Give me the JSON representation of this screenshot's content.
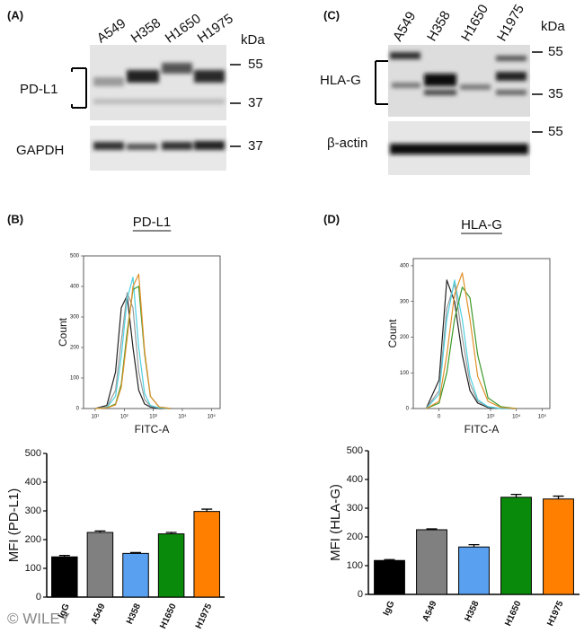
{
  "panels": [
    "(A)",
    "(B)",
    "(C)",
    "(D)"
  ],
  "blots": {
    "A": {
      "lanes": [
        "A549",
        "H358",
        "H1650",
        "H1975"
      ],
      "unit": "kDa",
      "markers": [
        "55",
        "37",
        "37"
      ],
      "targets": [
        "PD-L1",
        "GAPDH"
      ]
    },
    "C": {
      "lanes": [
        "A549",
        "H358",
        "H1650",
        "H1975"
      ],
      "unit": "kDa",
      "markers": [
        "55",
        "35",
        "55"
      ],
      "targets": [
        "HLA-G",
        "β-actin"
      ]
    }
  },
  "watermark": "© WILEY",
  "chart_data": [
    {
      "type": "line",
      "title": "PD-L1",
      "xlabel": "FITC-A",
      "ylabel": "Count",
      "x": [
        1,
        1.4,
        1.7,
        1.9,
        2.1,
        2.3,
        2.5,
        2.7,
        2.9,
        3.2,
        3.6
      ],
      "series": [
        {
          "color": "#222222",
          "values": [
            0,
            10,
            120,
            330,
            370,
            200,
            60,
            15,
            5,
            0,
            0
          ]
        },
        {
          "color": "#9a9a9a",
          "values": [
            0,
            5,
            60,
            220,
            380,
            330,
            120,
            30,
            8,
            2,
            0
          ]
        },
        {
          "color": "#4fd0e0",
          "values": [
            0,
            3,
            40,
            170,
            360,
            430,
            200,
            50,
            10,
            2,
            0
          ]
        },
        {
          "color": "#3a9a2a",
          "values": [
            0,
            2,
            15,
            80,
            250,
            390,
            400,
            180,
            40,
            5,
            0
          ]
        },
        {
          "color": "#e0902a",
          "values": [
            0,
            2,
            12,
            70,
            230,
            400,
            440,
            190,
            40,
            5,
            0
          ]
        }
      ],
      "xlim": [
        0.6,
        5.3
      ],
      "ylim": [
        0,
        500
      ],
      "xticks": [
        {
          "value": 1,
          "label": "10¹"
        },
        {
          "value": 2,
          "label": "10²"
        },
        {
          "value": 3,
          "label": "10³"
        },
        {
          "value": 4,
          "label": "10⁴"
        },
        {
          "value": 5,
          "label": "10⁵"
        }
      ],
      "yticks": [
        0,
        100,
        200,
        300,
        400,
        500
      ]
    },
    {
      "type": "bar",
      "ylabel": "MFI (PD-L1)",
      "categories": [
        "IgG",
        "A549",
        "H358",
        "H1650",
        "H1975"
      ],
      "values": [
        140,
        225,
        152,
        220,
        298
      ],
      "errors": [
        5,
        5,
        3,
        5,
        8
      ],
      "colors": [
        "#000000",
        "#808080",
        "#5aa0f0",
        "#0a8a0a",
        "#ff8000"
      ],
      "ylim": [
        0,
        500
      ],
      "yticks": [
        0,
        100,
        200,
        300,
        400,
        500
      ]
    },
    {
      "type": "line",
      "title": "HLA-G",
      "xlabel": "FITC-A",
      "ylabel": "Count",
      "x": [
        0.5,
        1,
        1.3,
        1.6,
        1.9,
        2.2,
        2.5,
        2.9,
        3.4,
        4
      ],
      "series": [
        {
          "color": "#222222",
          "values": [
            0,
            80,
            360,
            300,
            150,
            50,
            15,
            3,
            0,
            0
          ]
        },
        {
          "color": "#9a9a9a",
          "values": [
            0,
            50,
            280,
            350,
            200,
            70,
            20,
            5,
            0,
            0
          ]
        },
        {
          "color": "#4fd0e0",
          "values": [
            0,
            40,
            250,
            360,
            250,
            90,
            25,
            5,
            0,
            0
          ]
        },
        {
          "color": "#3a9a2a",
          "values": [
            0,
            15,
            100,
            250,
            340,
            310,
            150,
            30,
            5,
            0
          ]
        },
        {
          "color": "#e0902a",
          "values": [
            0,
            20,
            150,
            320,
            380,
            250,
            90,
            20,
            3,
            0
          ]
        }
      ],
      "xlim": [
        0,
        5.3
      ],
      "ylim": [
        0,
        420
      ],
      "xticks": [
        {
          "value": 1,
          "label": "0"
        },
        {
          "value": 3,
          "label": "10³"
        },
        {
          "value": 4,
          "label": "10⁴"
        },
        {
          "value": 5,
          "label": "10⁵"
        }
      ],
      "yticks": [
        0,
        100,
        200,
        300,
        400
      ]
    },
    {
      "type": "bar",
      "ylabel": "MFI (HLA-G)",
      "categories": [
        "IgG",
        "A549",
        "H358",
        "H1650",
        "H1975"
      ],
      "values": [
        118,
        225,
        165,
        338,
        332
      ],
      "errors": [
        3,
        3,
        8,
        10,
        10
      ],
      "colors": [
        "#000000",
        "#808080",
        "#5aa0f0",
        "#0a8a0a",
        "#ff8000"
      ],
      "ylim": [
        0,
        500
      ],
      "yticks": [
        0,
        100,
        200,
        300,
        400,
        500
      ]
    }
  ]
}
